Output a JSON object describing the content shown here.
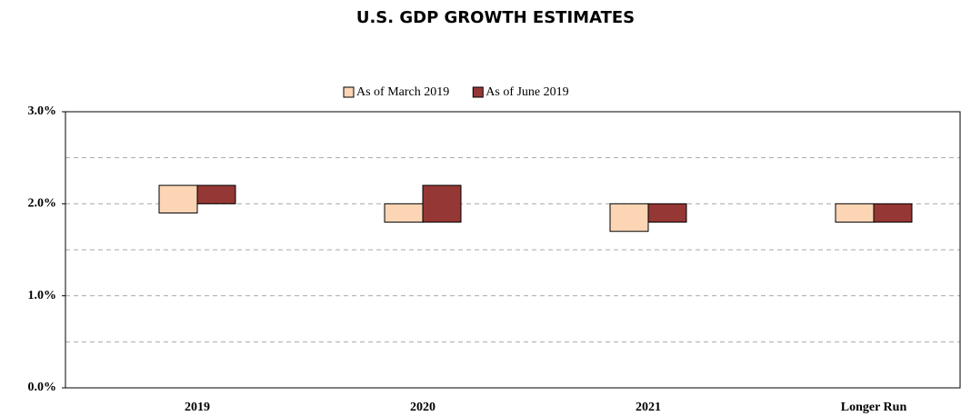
{
  "chart_data": {
    "type": "range_bar",
    "title": "U.S. GDP GROWTH ESTIMATES",
    "categories": [
      "2019",
      "2020",
      "2021",
      "Longer Run"
    ],
    "series": [
      {
        "name": "As of March 2019",
        "color": "#fcd5b5",
        "low": [
          1.9,
          1.8,
          1.7,
          1.8
        ],
        "high": [
          2.2,
          2.0,
          2.0,
          2.0
        ]
      },
      {
        "name": "As of June 2019",
        "color": "#953735",
        "low": [
          2.0,
          1.8,
          1.8,
          1.8
        ],
        "high": [
          2.2,
          2.2,
          2.0,
          2.0
        ]
      }
    ],
    "ylim": [
      0,
      3
    ],
    "yticks": [
      {
        "value": 0,
        "label": "0.0%"
      },
      {
        "value": 1,
        "label": "1.0%"
      },
      {
        "value": 2,
        "label": "2.0%"
      },
      {
        "value": 3,
        "label": "3.0%"
      }
    ],
    "minor_yticks": [
      0.5,
      1.5,
      2.5
    ],
    "grid": true,
    "legend": "top"
  }
}
